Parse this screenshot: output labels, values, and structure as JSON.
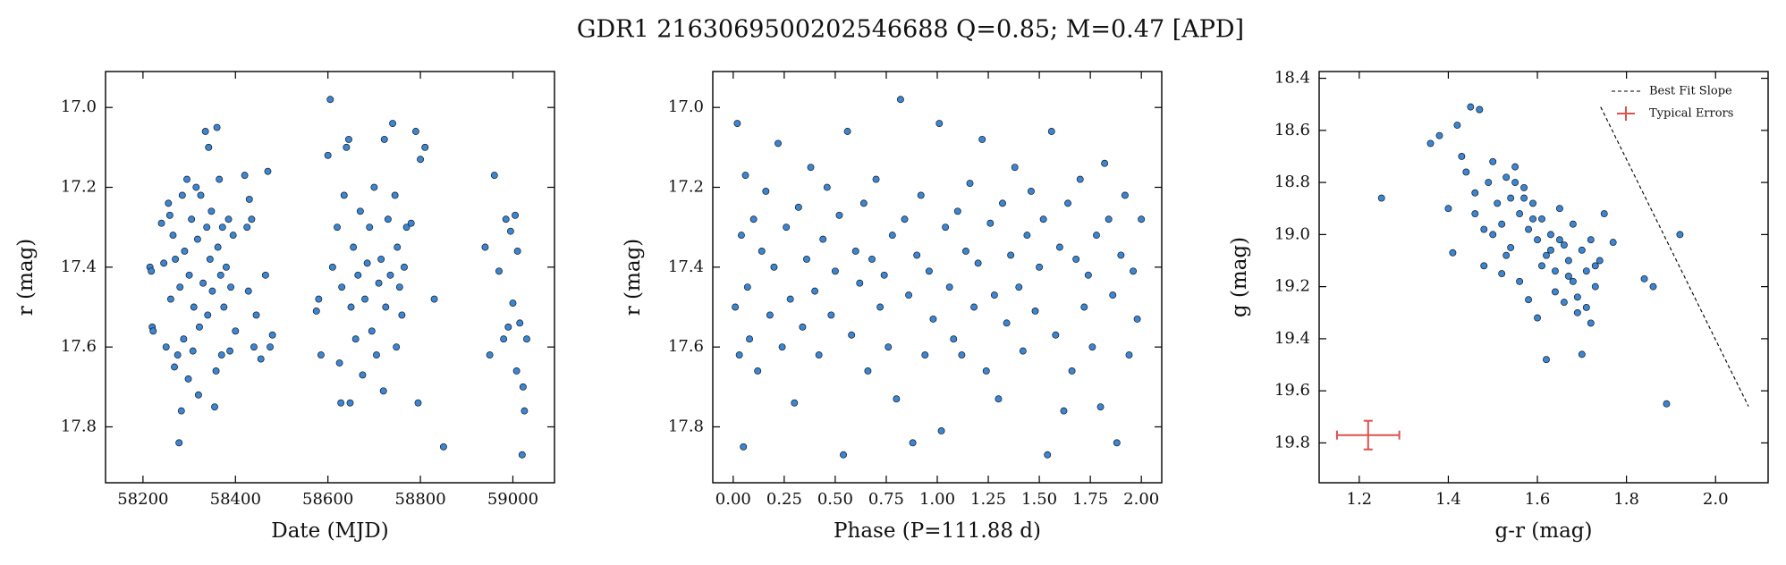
{
  "title": "GDR1 2163069500202546688  Q=0.85; M=0.47 [APD]",
  "chart_data": [
    {
      "type": "scatter",
      "xlabel": "Date (MJD)",
      "ylabel": "r (mag)",
      "color": "#3a86d4",
      "xlim": [
        58119,
        59090
      ],
      "ylim": [
        17.94,
        16.91
      ],
      "xticks": [
        58200,
        58400,
        58600,
        58800,
        59000
      ],
      "yticks": [
        {
          "value": 17,
          "label": "17.0"
        },
        17.2,
        17.4,
        17.6,
        17.8
      ],
      "x": [
        58215,
        58218,
        58220,
        58222,
        58240,
        58245,
        58250,
        58255,
        58258,
        58260,
        58265,
        58268,
        58270,
        58275,
        58278,
        58280,
        58283,
        58285,
        58288,
        58290,
        58295,
        58298,
        58300,
        58305,
        58308,
        58310,
        58315,
        58318,
        58320,
        58322,
        58325,
        58330,
        58335,
        58338,
        58340,
        58342,
        58345,
        58348,
        58350,
        58355,
        58358,
        58360,
        58362,
        58365,
        58368,
        58370,
        58372,
        58375,
        58380,
        58385,
        58388,
        58390,
        58395,
        58400,
        58420,
        58425,
        58428,
        58430,
        58435,
        58440,
        58445,
        58455,
        58465,
        58470,
        58475,
        58480,
        58575,
        58580,
        58585,
        58600,
        58605,
        58610,
        58620,
        58625,
        58628,
        58630,
        58635,
        58640,
        58645,
        58648,
        58650,
        58655,
        58660,
        58665,
        58670,
        58675,
        58680,
        58685,
        58690,
        58695,
        58700,
        58705,
        58710,
        58715,
        58720,
        58722,
        58725,
        58730,
        58735,
        58740,
        58745,
        58748,
        58750,
        58755,
        58760,
        58765,
        58770,
        58780,
        58790,
        58795,
        58800,
        58810,
        58830,
        58850,
        58940,
        58950,
        58960,
        58970,
        58980,
        58985,
        58990,
        58995,
        59000,
        59005,
        59008,
        59010,
        59015,
        59020,
        59022,
        59025,
        59030
      ],
      "values": [
        17.4,
        17.41,
        17.55,
        17.56,
        17.29,
        17.39,
        17.6,
        17.24,
        17.27,
        17.48,
        17.32,
        17.65,
        17.38,
        17.62,
        17.84,
        17.45,
        17.76,
        17.22,
        17.58,
        17.36,
        17.18,
        17.68,
        17.42,
        17.28,
        17.61,
        17.5,
        17.2,
        17.33,
        17.72,
        17.55,
        17.22,
        17.44,
        17.06,
        17.3,
        17.52,
        17.1,
        17.38,
        17.26,
        17.46,
        17.75,
        17.66,
        17.05,
        17.35,
        17.18,
        17.42,
        17.62,
        17.3,
        17.5,
        17.4,
        17.28,
        17.61,
        17.45,
        17.32,
        17.56,
        17.17,
        17.3,
        17.46,
        17.23,
        17.28,
        17.6,
        17.52,
        17.63,
        17.42,
        17.16,
        17.6,
        17.57,
        17.51,
        17.48,
        17.62,
        17.12,
        16.98,
        17.4,
        17.3,
        17.64,
        17.74,
        17.45,
        17.22,
        17.1,
        17.08,
        17.74,
        17.5,
        17.35,
        17.58,
        17.42,
        17.26,
        17.67,
        17.48,
        17.39,
        17.3,
        17.56,
        17.2,
        17.62,
        17.44,
        17.38,
        17.71,
        17.08,
        17.5,
        17.28,
        17.42,
        17.04,
        17.22,
        17.6,
        17.35,
        17.45,
        17.52,
        17.4,
        17.3,
        17.29,
        17.06,
        17.74,
        17.13,
        17.1,
        17.48,
        17.85,
        17.35,
        17.62,
        17.17,
        17.41,
        17.58,
        17.28,
        17.55,
        17.31,
        17.49,
        17.27,
        17.66,
        17.36,
        17.54,
        17.87,
        17.7,
        17.76,
        17.58
      ]
    },
    {
      "type": "scatter",
      "xlabel": "Phase (P=111.88 d)",
      "ylabel": "r (mag)",
      "color": "#3a86d4",
      "xlim": [
        -0.1,
        2.1
      ],
      "ylim": [
        17.94,
        16.91
      ],
      "xticks": [
        {
          "value": 0,
          "label": "0.00"
        },
        0.25,
        {
          "value": 0.5,
          "label": "0.50"
        },
        0.75,
        {
          "value": 1,
          "label": "1.00"
        },
        1.25,
        {
          "value": 1.5,
          "label": "1.50"
        },
        1.75,
        {
          "value": 2,
          "label": "2.00"
        }
      ],
      "yticks": [
        {
          "value": 17,
          "label": "17.0"
        },
        17.2,
        17.4,
        17.6,
        17.8
      ],
      "x": [
        0.01,
        0.02,
        0.03,
        0.04,
        0.05,
        0.06,
        0.07,
        0.08,
        0.1,
        0.12,
        0.14,
        0.16,
        0.18,
        0.2,
        0.22,
        0.24,
        0.26,
        0.28,
        0.3,
        0.32,
        0.34,
        0.36,
        0.38,
        0.4,
        0.42,
        0.44,
        0.46,
        0.48,
        0.5,
        0.52,
        0.54,
        0.56,
        0.58,
        0.6,
        0.62,
        0.64,
        0.66,
        0.68,
        0.7,
        0.72,
        0.74,
        0.76,
        0.78,
        0.8,
        0.82,
        0.84,
        0.86,
        0.88,
        0.9,
        0.92,
        0.94,
        0.96,
        0.98,
        1.01,
        1.02,
        1.04,
        1.06,
        1.08,
        1.1,
        1.12,
        1.14,
        1.16,
        1.18,
        1.2,
        1.22,
        1.24,
        1.26,
        1.28,
        1.3,
        1.32,
        1.34,
        1.36,
        1.38,
        1.4,
        1.42,
        1.44,
        1.46,
        1.48,
        1.5,
        1.52,
        1.54,
        1.56,
        1.58,
        1.6,
        1.62,
        1.64,
        1.66,
        1.68,
        1.7,
        1.72,
        1.74,
        1.76,
        1.78,
        1.8,
        1.82,
        1.84,
        1.86,
        1.88,
        1.9,
        1.92,
        1.94,
        1.96,
        1.98,
        2.0
      ],
      "values": [
        17.5,
        17.04,
        17.62,
        17.32,
        17.85,
        17.17,
        17.45,
        17.58,
        17.28,
        17.66,
        17.36,
        17.21,
        17.52,
        17.4,
        17.09,
        17.6,
        17.3,
        17.48,
        17.74,
        17.25,
        17.55,
        17.38,
        17.15,
        17.46,
        17.62,
        17.33,
        17.2,
        17.52,
        17.41,
        17.27,
        17.87,
        17.06,
        17.57,
        17.36,
        17.44,
        17.24,
        17.66,
        17.38,
        17.18,
        17.5,
        17.42,
        17.6,
        17.32,
        17.73,
        16.98,
        17.28,
        17.47,
        17.84,
        17.37,
        17.22,
        17.62,
        17.41,
        17.53,
        17.04,
        17.81,
        17.3,
        17.45,
        17.58,
        17.26,
        17.62,
        17.36,
        17.19,
        17.5,
        17.39,
        17.08,
        17.66,
        17.29,
        17.47,
        17.73,
        17.24,
        17.54,
        17.37,
        17.15,
        17.45,
        17.61,
        17.32,
        17.21,
        17.51,
        17.4,
        17.28,
        17.87,
        17.06,
        17.57,
        17.35,
        17.76,
        17.24,
        17.66,
        17.38,
        17.18,
        17.5,
        17.42,
        17.6,
        17.32,
        17.75,
        17.14,
        17.28,
        17.47,
        17.84,
        17.37,
        17.22,
        17.62,
        17.41,
        17.53,
        17.28
      ]
    },
    {
      "type": "scatter",
      "xlabel": "g-r (mag)",
      "ylabel": "g (mag)",
      "color": "#3a86d4",
      "xlim": [
        1.11,
        2.118
      ],
      "ylim": [
        19.953,
        18.374
      ],
      "xticks": [
        1.2,
        1.4,
        1.6,
        1.8,
        {
          "value": 2,
          "label": "2.0"
        }
      ],
      "yticks": [
        18.4,
        18.6,
        18.8,
        {
          "value": 19,
          "label": "19.0"
        },
        19.2,
        19.4,
        19.6,
        19.8
      ],
      "legend": "upper right",
      "x": [
        1.25,
        1.36,
        1.38,
        1.4,
        1.41,
        1.42,
        1.44,
        1.45,
        1.46,
        1.47,
        1.48,
        1.49,
        1.5,
        1.5,
        1.51,
        1.52,
        1.52,
        1.53,
        1.54,
        1.54,
        1.55,
        1.56,
        1.56,
        1.57,
        1.58,
        1.58,
        1.59,
        1.6,
        1.6,
        1.61,
        1.62,
        1.62,
        1.63,
        1.64,
        1.64,
        1.65,
        1.66,
        1.66,
        1.67,
        1.68,
        1.68,
        1.69,
        1.7,
        1.7,
        1.71,
        1.72,
        1.72,
        1.73,
        1.74,
        1.75,
        1.77,
        1.84,
        1.86,
        1.89,
        1.92,
        1.43,
        1.46,
        1.48,
        1.53,
        1.57,
        1.61,
        1.65,
        1.69,
        1.73,
        1.55,
        1.59,
        1.63,
        1.67,
        1.71,
        1.47
      ],
      "values": [
        18.86,
        18.65,
        18.62,
        18.9,
        19.07,
        18.58,
        18.76,
        18.51,
        18.92,
        18.52,
        19.12,
        18.8,
        18.72,
        19.0,
        18.88,
        18.96,
        19.15,
        18.78,
        18.86,
        19.05,
        18.74,
        18.92,
        19.18,
        18.82,
        18.98,
        19.25,
        18.88,
        19.02,
        19.32,
        18.94,
        19.08,
        19.48,
        19.0,
        19.14,
        19.22,
        18.9,
        19.04,
        19.26,
        19.1,
        19.18,
        18.96,
        19.3,
        19.06,
        19.46,
        19.14,
        19.02,
        19.34,
        19.2,
        19.1,
        18.92,
        19.03,
        19.17,
        19.2,
        19.65,
        19.0,
        18.7,
        18.84,
        18.98,
        19.08,
        18.86,
        19.12,
        19.02,
        19.24,
        19.12,
        18.8,
        18.94,
        19.06,
        19.16,
        19.28,
        18.52
      ],
      "lines": [
        {
          "name": "Best Fit Slope",
          "color": "#000000",
          "x": [
            1.742,
            2.074
          ],
          "values": [
            18.51,
            19.66
          ]
        }
      ],
      "errorbars": [
        {
          "name": "Typical Errors",
          "color": "#d9534f",
          "x": 1.22,
          "value": 19.77,
          "xerr": 0.07,
          "yerr": 0.055
        }
      ]
    }
  ]
}
